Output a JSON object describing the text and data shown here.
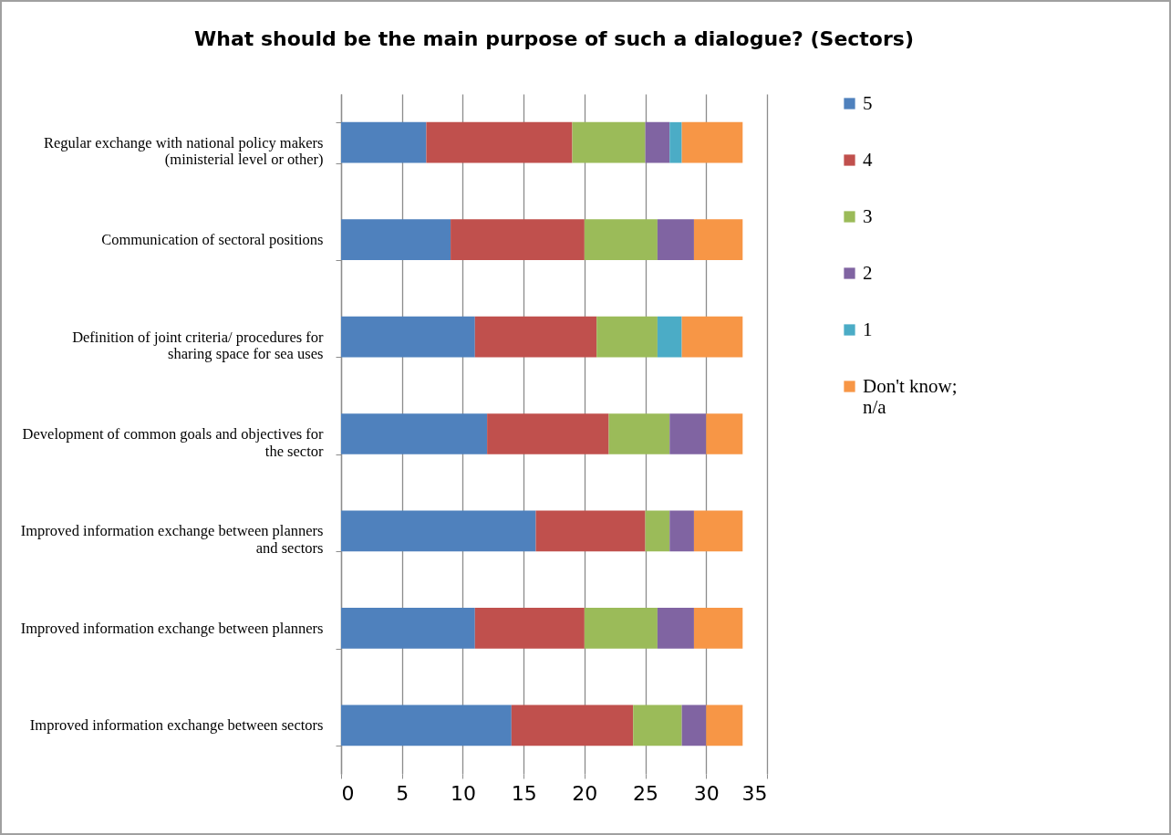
{
  "chart_data": {
    "type": "bar",
    "orientation": "horizontal",
    "stacked": true,
    "title": "What should be the main purpose of such a dialogue? (Sectors)",
    "categories": [
      "Regular exchange with national policy makers (ministerial level or other)",
      "Communication of sectoral positions",
      "Definition of joint criteria/ procedures for sharing space for sea uses",
      "Development of common goals and objectives for the sector",
      "Improved information exchange between planners and sectors",
      "Improved information exchange between planners",
      "Improved information exchange between sectors"
    ],
    "series": [
      {
        "name": "5",
        "color": "#4f81bd",
        "values": [
          7,
          9,
          11,
          12,
          16,
          11,
          14
        ]
      },
      {
        "name": "4",
        "color": "#c0504d",
        "values": [
          12,
          11,
          10,
          10,
          9,
          9,
          10
        ]
      },
      {
        "name": "3",
        "color": "#9bbb59",
        "values": [
          6,
          6,
          5,
          5,
          2,
          6,
          4
        ]
      },
      {
        "name": "2",
        "color": "#8064a2",
        "values": [
          2,
          3,
          0,
          3,
          2,
          3,
          2
        ]
      },
      {
        "name": "1",
        "color": "#4bacc6",
        "values": [
          1,
          0,
          2,
          0,
          0,
          0,
          0
        ]
      },
      {
        "name": "Don't know; n/a",
        "color": "#f79646",
        "values": [
          5,
          4,
          5,
          3,
          4,
          4,
          3
        ]
      }
    ],
    "xlim": [
      0,
      35
    ],
    "xticks": [
      0,
      5,
      10,
      15,
      20,
      25,
      30,
      35
    ],
    "grid": "x",
    "legend": "right"
  }
}
